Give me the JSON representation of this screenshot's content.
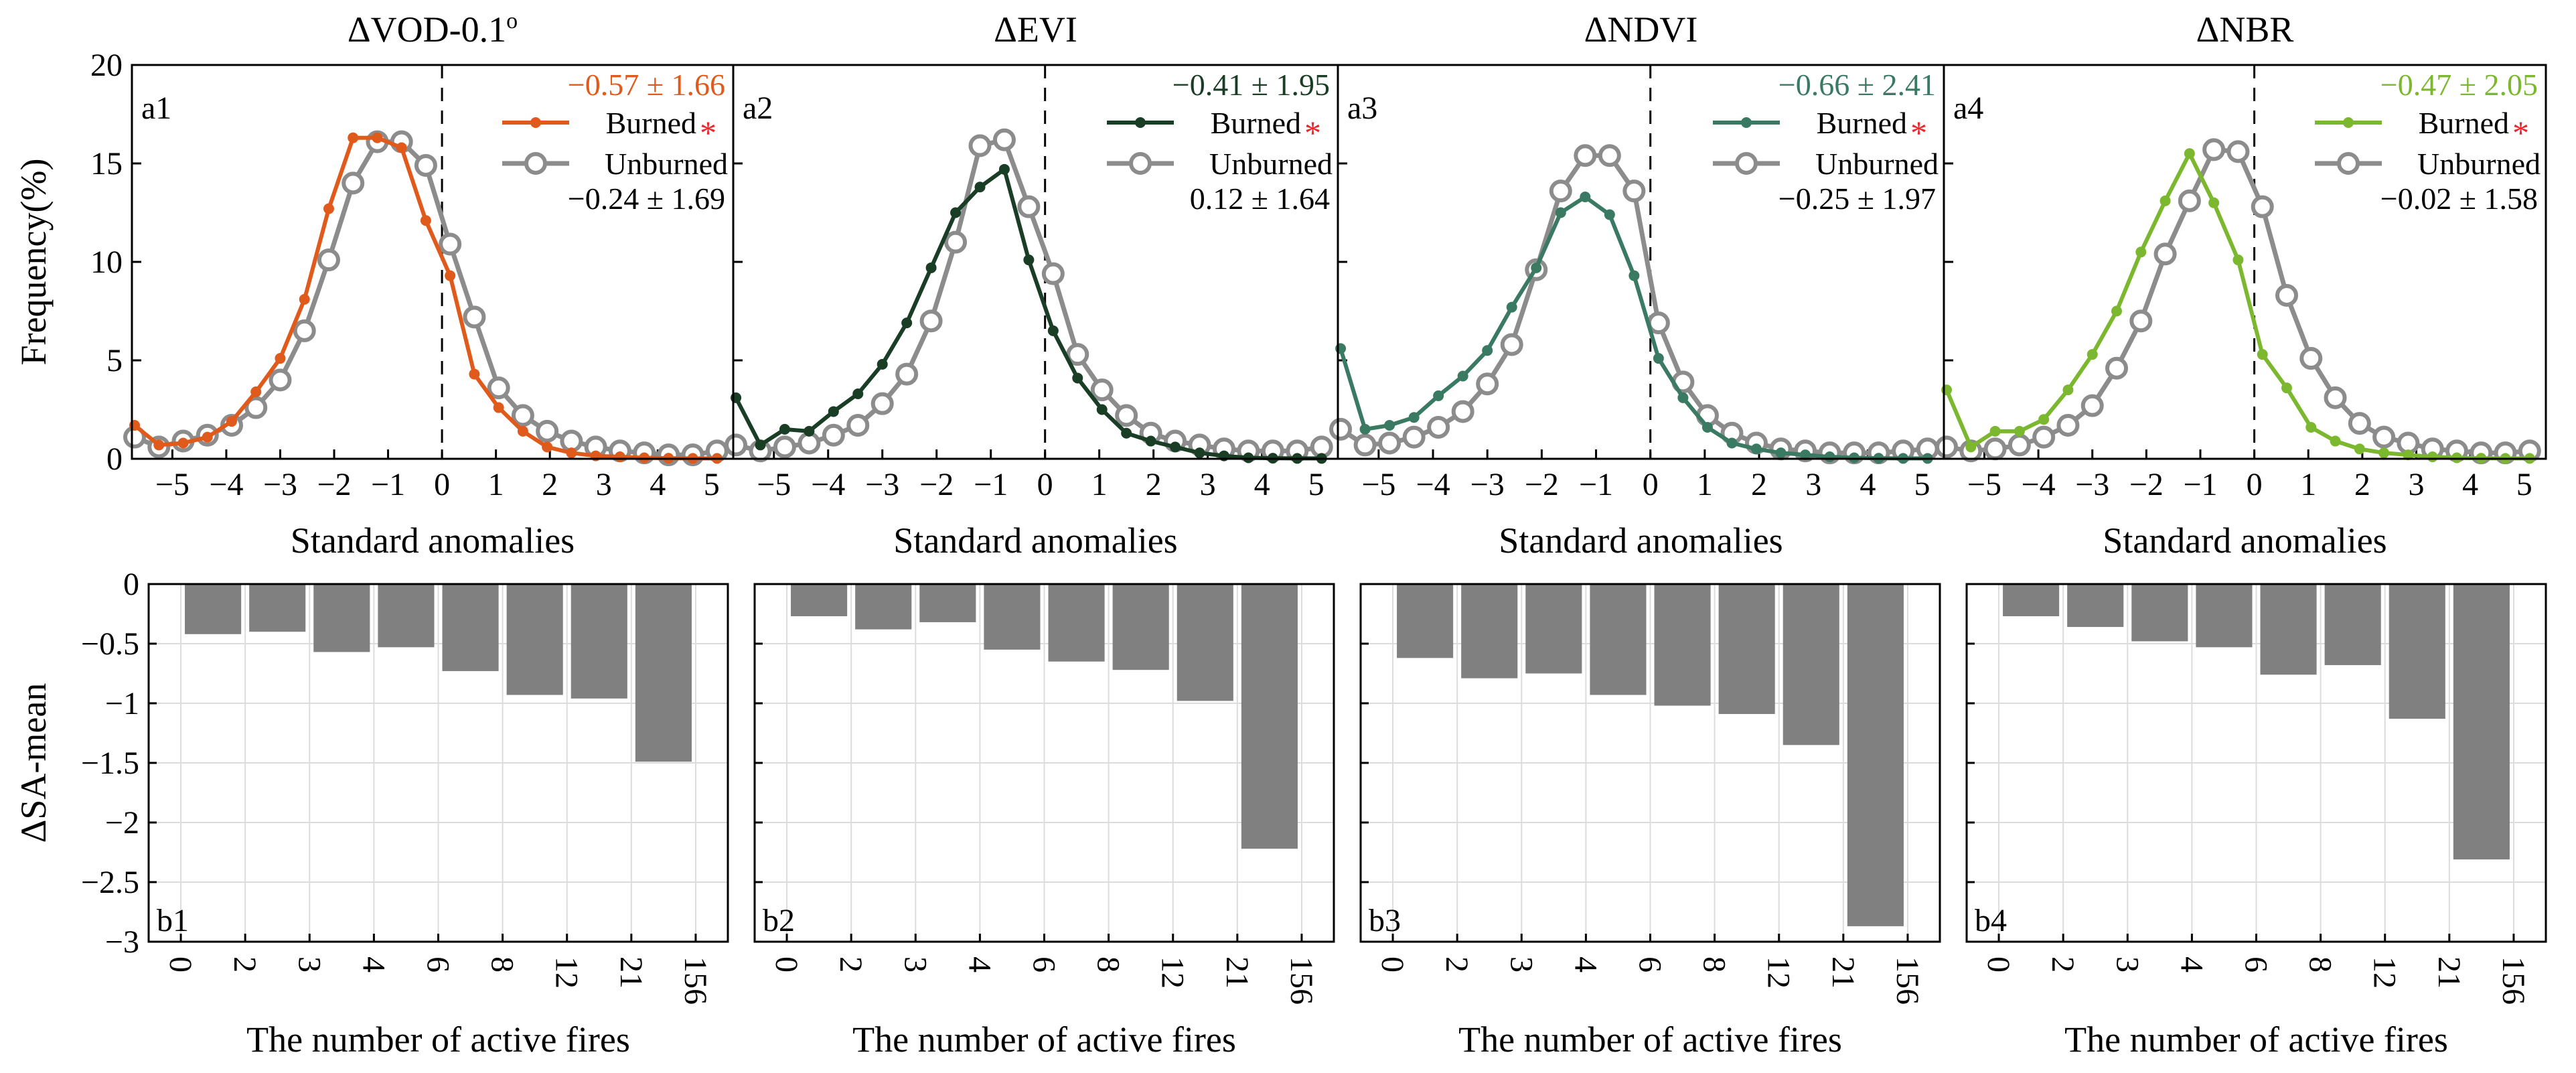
{
  "chart_data": {
    "type": "figure",
    "top_row": {
      "type": "line",
      "ylabel": "Frequency(%)",
      "xlabel": "Standard anomalies",
      "ylim": [
        0,
        20
      ],
      "yticks": [
        "0",
        "5",
        "10",
        "15",
        "20"
      ],
      "xlim": [
        -5.75,
        5.4
      ],
      "xticks": [
        -5,
        -4,
        -3,
        -2,
        -1,
        0,
        1,
        2,
        3,
        4,
        5
      ],
      "xtick_labels": [
        "−5",
        "−4",
        "−3",
        "−2",
        "−1",
        "0",
        "1",
        "2",
        "3",
        "4",
        "5"
      ],
      "x": [
        -5.7,
        -5.25,
        -4.8,
        -4.35,
        -3.9,
        -3.45,
        -3.0,
        -2.55,
        -2.1,
        -1.65,
        -1.2,
        -0.75,
        -0.3,
        0.15,
        0.6,
        1.05,
        1.5,
        1.95,
        2.4,
        2.85,
        3.3,
        3.75,
        4.2,
        4.65,
        5.1
      ],
      "legend": {
        "burned": "Burned",
        "unburned": "Unburned"
      },
      "unburned_color": "#8c8c8c",
      "panels": [
        {
          "label": "a1",
          "title": "ΔVOD-0.1",
          "title_sup": "o",
          "color": "#e05a1c",
          "burned_stat": "−0.57 ± 1.66",
          "unburned_stat": "−0.24 ± 1.69",
          "star": "*",
          "burned": [
            1.7,
            0.7,
            0.8,
            1.1,
            1.9,
            3.4,
            5.1,
            8.1,
            12.7,
            16.3,
            16.3,
            15.8,
            12.1,
            9.3,
            4.3,
            2.6,
            1.4,
            0.6,
            0.3,
            0.15,
            0.1,
            0.05,
            0.03,
            0.02,
            0.02
          ],
          "unburned": [
            1.1,
            0.6,
            0.9,
            1.2,
            1.7,
            2.6,
            4.0,
            6.5,
            10.1,
            14.0,
            16.1,
            16.1,
            14.9,
            10.9,
            7.2,
            3.6,
            2.2,
            1.4,
            0.9,
            0.6,
            0.4,
            0.3,
            0.2,
            0.2,
            0.4
          ]
        },
        {
          "label": "a2",
          "title": "ΔEVI",
          "title_sup": "",
          "color": "#1a3d26",
          "burned_stat": "−0.41 ± 1.95",
          "unburned_stat": "0.12 ± 1.64",
          "star": "*",
          "burned": [
            3.1,
            0.7,
            1.5,
            1.4,
            2.4,
            3.3,
            4.8,
            6.9,
            9.7,
            12.5,
            13.8,
            14.7,
            10.1,
            6.5,
            4.1,
            2.5,
            1.3,
            0.9,
            0.6,
            0.3,
            0.15,
            0.05,
            0.03,
            0.02,
            0.02
          ],
          "unburned": [
            0.7,
            0.4,
            0.6,
            0.8,
            1.2,
            1.7,
            2.8,
            4.3,
            7.0,
            11.0,
            15.9,
            16.2,
            12.8,
            9.4,
            5.3,
            3.5,
            2.2,
            1.3,
            0.9,
            0.7,
            0.5,
            0.4,
            0.4,
            0.4,
            0.6
          ]
        },
        {
          "label": "a3",
          "title": "ΔNDVI",
          "title_sup": "",
          "color": "#3a7a62",
          "burned_stat": "−0.66 ± 2.41",
          "unburned_stat": "−0.25 ± 1.97",
          "star": "*",
          "burned": [
            5.6,
            1.5,
            1.7,
            2.1,
            3.2,
            4.2,
            5.5,
            7.7,
            9.7,
            12.5,
            13.3,
            12.4,
            9.3,
            5.1,
            3.1,
            1.6,
            0.8,
            0.5,
            0.3,
            0.2,
            0.1,
            0.05,
            0.03,
            0.02,
            0.02
          ],
          "unburned": [
            1.5,
            0.7,
            0.8,
            1.1,
            1.6,
            2.4,
            3.8,
            5.8,
            9.6,
            13.6,
            15.4,
            15.4,
            13.6,
            6.9,
            3.9,
            2.2,
            1.3,
            0.8,
            0.5,
            0.4,
            0.3,
            0.3,
            0.3,
            0.4,
            0.5
          ]
        },
        {
          "label": "a4",
          "title": "ΔNBR",
          "title_sup": "",
          "color": "#7cb82f",
          "burned_stat": "−0.47 ± 2.05",
          "unburned_stat": "−0.02 ± 1.58",
          "star": "*",
          "burned": [
            3.5,
            0.6,
            1.4,
            1.4,
            2.0,
            3.5,
            5.3,
            7.5,
            10.5,
            13.1,
            15.5,
            13.0,
            10.1,
            5.3,
            3.6,
            1.6,
            0.9,
            0.5,
            0.3,
            0.2,
            0.1,
            0.05,
            0.03,
            0.02,
            0.02
          ],
          "unburned": [
            0.6,
            0.4,
            0.5,
            0.7,
            1.1,
            1.7,
            2.7,
            4.6,
            7.0,
            10.4,
            13.1,
            15.7,
            15.6,
            12.8,
            8.3,
            5.1,
            3.1,
            1.8,
            1.1,
            0.8,
            0.5,
            0.4,
            0.3,
            0.3,
            0.4
          ]
        }
      ]
    },
    "bottom_row": {
      "type": "bar",
      "ylabel": "ΔSA-mean",
      "xlabel": "The number of active fires",
      "ylim": [
        -3,
        0
      ],
      "yticks": [
        "0",
        "-0.5",
        "-1",
        "-1.5",
        "-2",
        "-2.5",
        "-3"
      ],
      "xtick_labels": [
        "0",
        "2",
        "3",
        "4",
        "6",
        "8",
        "12",
        "21",
        "156"
      ],
      "bar_color": "#808080",
      "panels": [
        {
          "label": "b1",
          "values": [
            -0.42,
            -0.4,
            -0.57,
            -0.53,
            -0.73,
            -0.93,
            -0.96,
            -1.49
          ]
        },
        {
          "label": "b2",
          "values": [
            -0.27,
            -0.38,
            -0.32,
            -0.55,
            -0.65,
            -0.72,
            -0.98,
            -2.22
          ]
        },
        {
          "label": "b3",
          "values": [
            -0.62,
            -0.79,
            -0.75,
            -0.93,
            -1.02,
            -1.09,
            -1.35,
            -2.87
          ]
        },
        {
          "label": "b4",
          "values": [
            -0.27,
            -0.36,
            -0.48,
            -0.53,
            -0.76,
            -0.68,
            -1.13,
            -2.31
          ]
        }
      ]
    }
  }
}
